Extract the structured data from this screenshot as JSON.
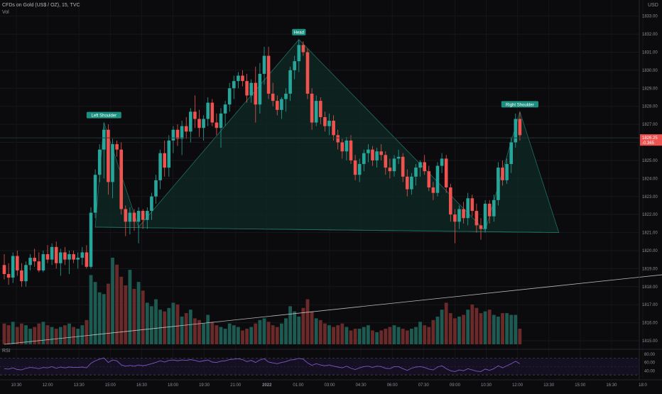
{
  "header": {
    "symbol_title": "CFDs on Gold (US$ / OZ), 15, TVC",
    "volume_label": "Vol"
  },
  "rsi_panel": {
    "label": "RSI"
  },
  "price_axis": {
    "currency": "USD"
  },
  "current_price": {
    "price": "1826.25",
    "change": "-0.365"
  },
  "colors": {
    "background": "#0b0b0d",
    "bull": "#26a69a",
    "bear": "#ef5350",
    "pattern_fill": "#0f2a24",
    "pattern_line": "#1f6e63",
    "label_bg": "#1b8f80",
    "rsi_line": "#7e57c2",
    "trendline": "#d7d7d7"
  },
  "icons": {
    "price_tag": "price-marker-icon"
  },
  "chart_data": {
    "type": "candlestick",
    "title": "CFDs on Gold (US$ / OZ), 15, TVC",
    "xlabel": "",
    "ylabel": "",
    "ylim": [
      1815.0,
      1833.5
    ],
    "grid": true,
    "x_ticks": [
      "10:30",
      "12:00",
      "13:30",
      "15:00",
      "16:30",
      "18:00",
      "19:30",
      "21:00",
      "2022",
      "01:00",
      "03:00",
      "04:30",
      "06:00",
      "07:30",
      "09:00",
      "10:30",
      "12:00",
      "13:30",
      "15:00",
      "16:30",
      "18:0"
    ],
    "y_ticks": [
      "1833.00",
      "1832.00",
      "1831.00",
      "1830.00",
      "1829.00",
      "1828.00",
      "1827.00",
      "1826.00",
      "1825.00",
      "1824.00",
      "1823.00",
      "1822.00",
      "1821.00",
      "1820.00",
      "1819.00",
      "1818.00",
      "1817.00",
      "1816.00",
      "1815.00"
    ],
    "candles": [
      [
        1819.2,
        1819.8,
        1818.4,
        1818.7
      ],
      [
        1818.7,
        1819.3,
        1818.1,
        1818.5
      ],
      [
        1818.5,
        1819.9,
        1818.2,
        1819.7
      ],
      [
        1819.7,
        1820.0,
        1818.6,
        1818.9
      ],
      [
        1818.9,
        1819.3,
        1818.0,
        1818.3
      ],
      [
        1818.3,
        1819.4,
        1818.0,
        1819.2
      ],
      [
        1819.2,
        1819.8,
        1818.9,
        1819.6
      ],
      [
        1819.6,
        1820.1,
        1819.1,
        1819.4
      ],
      [
        1819.4,
        1819.9,
        1818.8,
        1818.9
      ],
      [
        1818.9,
        1820.0,
        1818.8,
        1819.8
      ],
      [
        1819.8,
        1820.3,
        1819.3,
        1819.5
      ],
      [
        1819.5,
        1820.4,
        1819.2,
        1820.2
      ],
      [
        1820.2,
        1820.5,
        1819.0,
        1819.3
      ],
      [
        1819.3,
        1820.1,
        1818.6,
        1819.9
      ],
      [
        1819.9,
        1820.2,
        1819.2,
        1819.5
      ],
      [
        1819.5,
        1820.0,
        1818.7,
        1819.8
      ],
      [
        1819.8,
        1820.0,
        1819.3,
        1819.5
      ],
      [
        1819.5,
        1819.9,
        1819.0,
        1819.6
      ],
      [
        1819.6,
        1820.2,
        1819.2,
        1819.9
      ],
      [
        1819.9,
        1820.3,
        1819.0,
        1819.1
      ],
      [
        1819.1,
        1822.4,
        1819.0,
        1822.1
      ],
      [
        1822.1,
        1824.5,
        1821.8,
        1824.2
      ],
      [
        1824.2,
        1825.9,
        1823.8,
        1825.6
      ],
      [
        1825.6,
        1827.1,
        1824.0,
        1826.7
      ],
      [
        1826.7,
        1827.0,
        1823.1,
        1823.8
      ],
      [
        1823.8,
        1826.2,
        1822.9,
        1825.9
      ],
      [
        1825.9,
        1826.1,
        1825.2,
        1825.6
      ],
      [
        1825.6,
        1826.0,
        1822.0,
        1822.3
      ],
      [
        1822.3,
        1822.5,
        1820.8,
        1821.6
      ],
      [
        1821.6,
        1822.4,
        1820.9,
        1822.1
      ],
      [
        1822.1,
        1822.3,
        1821.1,
        1821.6
      ],
      [
        1821.6,
        1822.4,
        1820.4,
        1822.2
      ],
      [
        1822.2,
        1822.3,
        1821.2,
        1821.7
      ],
      [
        1821.7,
        1822.4,
        1821.2,
        1822.2
      ],
      [
        1822.2,
        1823.2,
        1821.7,
        1823.0
      ],
      [
        1823.0,
        1824.2,
        1822.6,
        1823.9
      ],
      [
        1823.9,
        1825.6,
        1823.4,
        1825.4
      ],
      [
        1825.4,
        1826.1,
        1824.1,
        1824.6
      ],
      [
        1824.6,
        1826.4,
        1824.1,
        1826.1
      ],
      [
        1826.1,
        1826.9,
        1825.4,
        1826.7
      ],
      [
        1826.7,
        1827.0,
        1825.8,
        1826.2
      ],
      [
        1826.2,
        1827.2,
        1825.3,
        1826.9
      ],
      [
        1826.9,
        1827.4,
        1826.2,
        1826.6
      ],
      [
        1826.6,
        1827.9,
        1826.0,
        1827.7
      ],
      [
        1827.7,
        1828.6,
        1826.8,
        1827.3
      ],
      [
        1827.3,
        1827.8,
        1826.3,
        1826.8
      ],
      [
        1826.8,
        1827.5,
        1826.1,
        1827.3
      ],
      [
        1827.3,
        1828.5,
        1826.9,
        1828.2
      ],
      [
        1828.2,
        1828.4,
        1826.9,
        1827.1
      ],
      [
        1827.1,
        1827.6,
        1826.4,
        1826.8
      ],
      [
        1826.8,
        1827.9,
        1825.7,
        1827.6
      ],
      [
        1827.6,
        1828.3,
        1826.9,
        1828.1
      ],
      [
        1828.1,
        1829.3,
        1827.7,
        1829.0
      ],
      [
        1829.0,
        1829.7,
        1828.4,
        1829.4
      ],
      [
        1829.4,
        1829.9,
        1829.0,
        1829.7
      ],
      [
        1829.7,
        1830.0,
        1829.1,
        1829.4
      ],
      [
        1829.4,
        1829.8,
        1828.2,
        1828.6
      ],
      [
        1828.6,
        1829.5,
        1828.2,
        1829.3
      ],
      [
        1829.3,
        1830.2,
        1827.1,
        1828.1
      ],
      [
        1828.1,
        1830.4,
        1827.6,
        1829.8
      ],
      [
        1829.8,
        1831.3,
        1829.2,
        1830.8
      ],
      [
        1830.8,
        1831.3,
        1828.4,
        1828.7
      ],
      [
        1828.7,
        1829.3,
        1828.0,
        1828.3
      ],
      [
        1828.3,
        1828.6,
        1827.5,
        1827.8
      ],
      [
        1827.8,
        1828.5,
        1827.3,
        1828.4
      ],
      [
        1828.4,
        1829.0,
        1827.7,
        1828.7
      ],
      [
        1828.7,
        1830.2,
        1828.3,
        1830.0
      ],
      [
        1830.0,
        1830.8,
        1829.5,
        1830.5
      ],
      [
        1830.5,
        1831.7,
        1829.9,
        1831.4
      ],
      [
        1831.4,
        1831.6,
        1830.8,
        1831.0
      ],
      [
        1831.0,
        1831.2,
        1828.4,
        1828.7
      ],
      [
        1828.7,
        1829.0,
        1826.7,
        1827.1
      ],
      [
        1827.1,
        1828.6,
        1826.9,
        1828.3
      ],
      [
        1828.3,
        1828.5,
        1827.0,
        1827.4
      ],
      [
        1827.4,
        1827.7,
        1826.6,
        1826.9
      ],
      [
        1826.9,
        1827.6,
        1826.4,
        1827.2
      ],
      [
        1827.2,
        1827.5,
        1826.1,
        1826.4
      ],
      [
        1826.4,
        1826.7,
        1825.6,
        1826.0
      ],
      [
        1826.0,
        1826.2,
        1825.1,
        1825.5
      ],
      [
        1825.5,
        1826.3,
        1825.0,
        1826.1
      ],
      [
        1826.1,
        1826.4,
        1824.8,
        1825.0
      ],
      [
        1825.0,
        1825.3,
        1823.9,
        1824.2
      ],
      [
        1824.2,
        1825.1,
        1823.8,
        1824.8
      ],
      [
        1824.8,
        1825.6,
        1824.4,
        1825.4
      ],
      [
        1825.4,
        1825.9,
        1824.9,
        1825.6
      ],
      [
        1825.6,
        1825.8,
        1824.7,
        1825.0
      ],
      [
        1825.0,
        1825.7,
        1824.6,
        1825.5
      ],
      [
        1825.5,
        1825.9,
        1825.0,
        1825.3
      ],
      [
        1825.3,
        1825.5,
        1824.2,
        1824.6
      ],
      [
        1824.6,
        1825.1,
        1824.0,
        1824.4
      ],
      [
        1824.4,
        1825.3,
        1824.1,
        1825.1
      ],
      [
        1825.1,
        1825.6,
        1824.8,
        1825.2
      ],
      [
        1825.2,
        1825.4,
        1823.8,
        1824.1
      ],
      [
        1824.1,
        1824.5,
        1823.0,
        1823.4
      ],
      [
        1823.4,
        1824.3,
        1823.1,
        1824.1
      ],
      [
        1824.1,
        1824.8,
        1823.6,
        1824.6
      ],
      [
        1824.6,
        1825.0,
        1824.1,
        1824.9
      ],
      [
        1824.9,
        1825.3,
        1824.2,
        1824.4
      ],
      [
        1824.4,
        1824.7,
        1823.3,
        1823.5
      ],
      [
        1823.5,
        1823.8,
        1822.8,
        1823.2
      ],
      [
        1823.2,
        1824.9,
        1823.0,
        1824.7
      ],
      [
        1824.7,
        1825.4,
        1824.3,
        1825.1
      ],
      [
        1825.1,
        1825.3,
        1823.2,
        1823.5
      ],
      [
        1823.5,
        1823.7,
        1821.6,
        1822.0
      ],
      [
        1822.0,
        1822.3,
        1820.4,
        1821.6
      ],
      [
        1821.6,
        1822.5,
        1821.2,
        1822.3
      ],
      [
        1822.3,
        1822.7,
        1821.5,
        1821.8
      ],
      [
        1821.8,
        1823.2,
        1821.4,
        1822.9
      ],
      [
        1822.9,
        1823.1,
        1821.9,
        1822.2
      ],
      [
        1822.2,
        1822.6,
        1821.0,
        1821.4
      ],
      [
        1821.4,
        1821.8,
        1820.6,
        1821.2
      ],
      [
        1821.2,
        1822.8,
        1821.0,
        1822.6
      ],
      [
        1822.6,
        1822.8,
        1821.5,
        1821.9
      ],
      [
        1821.9,
        1823.1,
        1821.6,
        1822.8
      ],
      [
        1822.8,
        1824.9,
        1822.5,
        1824.6
      ],
      [
        1824.6,
        1825.0,
        1823.6,
        1823.9
      ],
      [
        1823.9,
        1825.1,
        1823.7,
        1824.8
      ],
      [
        1824.8,
        1826.3,
        1824.3,
        1826.0
      ],
      [
        1826.0,
        1827.6,
        1825.7,
        1827.3
      ],
      [
        1827.3,
        1827.7,
        1826.1,
        1826.4
      ]
    ],
    "volumes": [
      1.2,
      1.1,
      1.3,
      1.0,
      1.2,
      1.1,
      0.9,
      1.0,
      1.2,
      1.3,
      1.1,
      1.0,
      0.9,
      1.0,
      1.1,
      1.2,
      1.0,
      0.9,
      1.1,
      1.4,
      4.0,
      3.6,
      3.0,
      2.9,
      3.5,
      5.0,
      4.6,
      3.9,
      3.4,
      4.3,
      3.2,
      3.6,
      3.1,
      2.4,
      2.2,
      2.6,
      2.0,
      1.9,
      2.1,
      2.4,
      2.3,
      1.6,
      1.8,
      2.0,
      1.5,
      1.4,
      1.2,
      1.7,
      1.3,
      1.1,
      1.0,
      0.9,
      1.2,
      1.1,
      1.0,
      0.8,
      0.9,
      1.0,
      1.2,
      1.4,
      1.5,
      1.3,
      1.1,
      1.0,
      1.2,
      1.5,
      2.2,
      1.9,
      1.6,
      2.1,
      2.6,
      1.9,
      1.5,
      1.4,
      1.2,
      1.1,
      1.0,
      1.1,
      1.2,
      1.0,
      0.8,
      0.9,
      0.9,
      1.0,
      1.1,
      0.8,
      0.7,
      0.8,
      0.9,
      1.0,
      1.1,
      1.0,
      0.9,
      0.8,
      0.9,
      1.0,
      1.3,
      1.1,
      1.0,
      1.4,
      1.6,
      2.0,
      2.4,
      1.8,
      1.5,
      1.6,
      1.7,
      2.0,
      2.3,
      2.1,
      1.8,
      1.9,
      2.0,
      1.7,
      1.6,
      1.8,
      1.8,
      1.7,
      1.7,
      0.9
    ],
    "rsi": [
      45,
      44,
      47,
      43,
      42,
      46,
      48,
      47,
      45,
      48,
      47,
      50,
      46,
      49,
      47,
      49,
      48,
      48,
      49,
      47,
      58,
      64,
      68,
      71,
      60,
      66,
      64,
      54,
      51,
      53,
      51,
      54,
      52,
      54,
      57,
      60,
      64,
      61,
      65,
      66,
      64,
      66,
      65,
      67,
      65,
      62,
      64,
      66,
      61,
      60,
      63,
      64,
      67,
      68,
      69,
      67,
      62,
      65,
      60,
      66,
      69,
      61,
      59,
      57,
      60,
      62,
      66,
      67,
      70,
      68,
      59,
      53,
      57,
      54,
      52,
      54,
      51,
      49,
      47,
      51,
      46,
      43,
      47,
      50,
      51,
      48,
      51,
      50,
      46,
      45,
      50,
      50,
      45,
      41,
      46,
      49,
      50,
      48,
      44,
      42,
      49,
      52,
      45,
      40,
      38,
      42,
      40,
      45,
      42,
      39,
      38,
      44,
      41,
      45,
      52,
      47,
      52,
      57,
      63,
      57
    ],
    "rsi_ticks": [
      "80.00",
      "60.00",
      "40.00"
    ],
    "rsi_levels": [
      70,
      30
    ],
    "annotations": [
      {
        "text": "Head",
        "kind": "pattern-peak"
      },
      {
        "text": "Left Shoulder",
        "kind": "pattern-peak"
      },
      {
        "text": "Right Shoulder",
        "kind": "pattern-peak"
      }
    ],
    "pattern_points": [
      {
        "bar": 21,
        "price": 1821.3
      },
      {
        "bar": 23,
        "price": 1827.1
      },
      {
        "bar": 31,
        "price": 1821.3
      },
      {
        "bar": 68,
        "price": 1831.7
      },
      {
        "bar": 111,
        "price": 1821.1
      },
      {
        "bar": 119,
        "price": 1827.7
      },
      {
        "bar": 128,
        "price": 1821.0
      }
    ],
    "neckline": [
      {
        "bar": 21,
        "price": 1821.3
      },
      {
        "bar": 128,
        "price": 1821.0
      }
    ],
    "trendline": [
      {
        "bar": 0,
        "volume_frac": 0.0
      },
      {
        "bar": 155,
        "volume_frac": 1.0
      }
    ]
  }
}
